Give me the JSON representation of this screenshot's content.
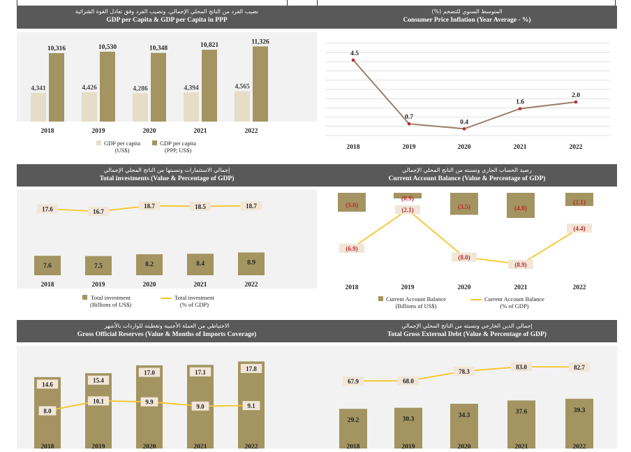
{
  "colors": {
    "gold": "#a39461",
    "gold_light": "#e5ddc8",
    "line_yellow": "#f5c52a",
    "line_brown": "#9c7e67",
    "marker_red": "#c0272d",
    "header": "#595959",
    "plot_bg": "#f2f2f2"
  },
  "panels": [
    {
      "id": "gdp",
      "arabic": "نصيب الفرد من الناتج المحلي الإجمالي، ونصيب الفرد وفق تعادل القوة الشرائية",
      "title": "GDP per Capita & GDP per Capita in PPP",
      "legend": [
        {
          "kind": "box",
          "color": "#e5ddc8",
          "l1": "GDP per capita",
          "l2": "(US$)"
        },
        {
          "kind": "box",
          "color": "#a39461",
          "l1": "GDP per capita",
          "l2": "(PPP, US$)"
        }
      ],
      "chart_data": {
        "type": "bar",
        "categories": [
          "2018",
          "2019",
          "2020",
          "2021",
          "2022"
        ],
        "series": [
          {
            "name": "GDP per capita (US$)",
            "values": [
              4341,
              4426,
              4286,
              4394,
              4565
            ],
            "labels": [
              "4,341",
              "4,426",
              "4,286",
              "4,394",
              "4,565"
            ]
          },
          {
            "name": "GDP per capita (PPP, US$)",
            "values": [
              10316,
              10530,
              10348,
              10821,
              11326
            ],
            "labels": [
              "10,316",
              "10,530",
              "10,348",
              "10,821",
              "11,326"
            ]
          }
        ],
        "ylim": [
          0,
          12000
        ],
        "title": "GDP per Capita & GDP per Capita in PPP"
      }
    },
    {
      "id": "cpi",
      "arabic": "المتوسط السنوي للتضخم (%)",
      "title": "Consumer Price Inflation (Year Average - %)",
      "legend": [],
      "chart_data": {
        "type": "line",
        "categories": [
          "2018",
          "2019",
          "2020",
          "2021",
          "2022"
        ],
        "series": [
          {
            "name": "Consumer Price Inflation",
            "values": [
              4.5,
              0.7,
              0.4,
              1.6,
              2.0
            ],
            "labels": [
              "4.5",
              "0.7",
              "0.4",
              "1.6",
              "2.0"
            ]
          }
        ],
        "ylim": [
          0,
          5.5
        ],
        "grid": true,
        "title": "Consumer Price Inflation (Year Average - %)"
      }
    },
    {
      "id": "inv",
      "arabic": "إجمالي الاستثمارات ونسبتها من الناتج المحلي الإجمالي",
      "title": "Total investments (Value & Percentage of GDP)",
      "legend": [
        {
          "kind": "box",
          "color": "#a39461",
          "l1": "Total investment",
          "l2": "(Billions of US$)"
        },
        {
          "kind": "line",
          "color": "#f5c52a",
          "l1": "Total investment",
          "l2": "(% of GDP)"
        }
      ],
      "chart_data": {
        "type": "bar",
        "categories": [
          "2018",
          "2019",
          "2020",
          "2021",
          "2022"
        ],
        "series": [
          {
            "name": "Total investment (Billions of US$)",
            "values": [
              7.6,
              7.5,
              8.2,
              8.4,
              8.9
            ],
            "labels": [
              "7.6",
              "7.5",
              "8.2",
              "8.4",
              "8.9"
            ]
          },
          {
            "name": "Total investment (% of GDP)",
            "values": [
              17.6,
              16.7,
              18.7,
              18.5,
              18.7
            ],
            "labels": [
              "17.6",
              "16.7",
              "18.7",
              "18.5",
              "18.7"
            ]
          }
        ],
        "bar_ylim": [
          0,
          30
        ],
        "line_ylim": [
          0,
          22
        ],
        "title": "Total investments (Value & Percentage of GDP)"
      }
    },
    {
      "id": "cab",
      "arabic": "رصيد الحساب الجاري ونسبته من الناتج المحلي الإجمالي",
      "title": "Current Account Balance (Value & Percentage of GDP)",
      "legend": [
        {
          "kind": "box",
          "color": "#a39461",
          "l1": "Current Account Balance",
          "l2": "(Billions of US$)"
        },
        {
          "kind": "line",
          "color": "#f5c52a",
          "l1": "Current Account Balance",
          "l2": "(% of GDP)"
        }
      ],
      "chart_data": {
        "type": "bar",
        "categories": [
          "2018",
          "2019",
          "2020",
          "2021",
          "2022"
        ],
        "series": [
          {
            "name": "Current Account Balance (Billions of US$)",
            "values": [
              -3.0,
              -0.9,
              -3.5,
              -4.0,
              -2.1
            ],
            "labels": [
              "(3.0)",
              "(0.9)",
              "(3.5)",
              "(4.0)",
              "(2.1)"
            ]
          },
          {
            "name": "Current Account Balance (% of GDP)",
            "values": [
              -6.9,
              -2.1,
              -8.0,
              -8.9,
              -4.4
            ],
            "labels": [
              "(6.9)",
              "(2.1)",
              "(8.0)",
              "(8.9)",
              "(4.4)"
            ]
          }
        ],
        "bar_ylim": [
          -8,
          0
        ],
        "line_ylim": [
          -10,
          0
        ],
        "title": "Current Account Balance (Value & Percentage of GDP)"
      }
    },
    {
      "id": "res",
      "arabic": "الاحتياطي من العملة الأجنبية وتغطيته للواردات بالأشهر",
      "title": "Gross Official Reserves (Value & Months of Imports Coverage)",
      "legend": [],
      "chart_data": {
        "type": "bar",
        "categories": [
          "2018",
          "2019",
          "2020",
          "2021",
          "2022"
        ],
        "series": [
          {
            "name": "Gross Official Reserves",
            "values": [
              14.6,
              15.4,
              17.0,
              17.1,
              17.8
            ],
            "labels": [
              "14.6",
              "15.4",
              "17.0",
              "17.1",
              "17.8"
            ]
          },
          {
            "name": "Months of Imports Coverage",
            "values": [
              8.0,
              10.1,
              9.9,
              9.0,
              9.1
            ],
            "labels": [
              "8.0",
              "10.1",
              "9.9",
              "9.0",
              "9.1"
            ]
          }
        ],
        "bar_ylim": [
          0,
          20
        ],
        "line_ylim": [
          0,
          20
        ],
        "title": "Gross Official Reserves (Value & Months of Imports Coverage)"
      }
    },
    {
      "id": "debt",
      "arabic": "إجمالي الدين الخارجي ونسبته من الناتج المحلي الإجمالي",
      "title": "Total Gross External Debt (Value & Percentage of GDP)",
      "legend": [],
      "chart_data": {
        "type": "bar",
        "categories": [
          "2018",
          "2019",
          "2020",
          "2021",
          "2022"
        ],
        "series": [
          {
            "name": "Total Gross External Debt",
            "values": [
              29.2,
              30.3,
              34.3,
              37.6,
              39.3
            ],
            "labels": [
              "29.2",
              "30.3",
              "34.3",
              "37.6",
              "39.3"
            ]
          },
          {
            "name": "Percentage of GDP",
            "values": [
              67.9,
              68.0,
              78.3,
              83.0,
              82.7
            ],
            "labels": [
              "67.9",
              "68.0",
              "78.3",
              "83.0",
              "82.7"
            ]
          }
        ],
        "bar_ylim": [
          0,
          100
        ],
        "line_ylim": [
          0,
          100
        ],
        "title": "Total Gross External Debt (Value & Percentage of GDP)"
      }
    }
  ]
}
